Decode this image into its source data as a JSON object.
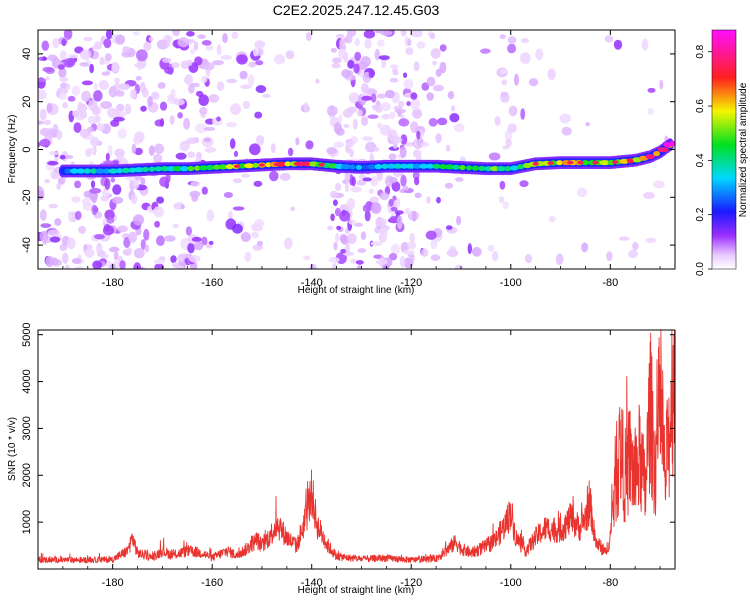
{
  "figure": {
    "title": "C2E2.2025.247.12.45.G03"
  },
  "chart_data": [
    {
      "type": "heatmap",
      "panel": "top",
      "title": "C2E2.2025.247.12.45.G03",
      "xlabel": "Height of straight line (km)",
      "ylabel": "Frequency (Hz)",
      "xlim": [
        -195,
        -67
      ],
      "ylim": [
        -50,
        50
      ],
      "xticks": [
        -180,
        -160,
        -140,
        -120,
        -100,
        -80
      ],
      "xtick_labels": [
        "-180",
        "-160",
        "-140",
        "-120",
        "-100",
        "-80"
      ],
      "yticks": [
        -40,
        -20,
        0,
        20,
        40
      ],
      "ytick_labels": [
        "-40",
        "-20",
        "0",
        "20",
        "40"
      ],
      "colorbar": {
        "label": "Normalized spectral amplitude",
        "range": [
          0,
          0.88
        ],
        "ticks": [
          0.0,
          0.2,
          0.4,
          0.6,
          0.8
        ],
        "tick_labels": [
          "0.0",
          "0.2",
          "0.4",
          "0.6",
          "0.8"
        ],
        "colormap": "rainbow (white-purple-blue-cyan-green-yellow-red-magenta)"
      },
      "ridge": {
        "description": "dominant frequency track",
        "x": [
          -190,
          -185,
          -180,
          -175,
          -170,
          -165,
          -160,
          -155,
          -150,
          -145,
          -140,
          -135,
          -130,
          -125,
          -120,
          -115,
          -110,
          -105,
          -100,
          -95,
          -90,
          -85,
          -80,
          -75,
          -72,
          -70,
          -68
        ],
        "y": [
          -9,
          -9,
          -9,
          -8.5,
          -8,
          -8,
          -7.5,
          -7,
          -6.5,
          -6,
          -6,
          -7,
          -7.5,
          -7,
          -7,
          -7,
          -7.5,
          -8,
          -8,
          -6,
          -5.5,
          -5.5,
          -5.5,
          -4.5,
          -3,
          -1,
          2
        ],
        "amplitude": [
          0.35,
          0.35,
          0.38,
          0.4,
          0.42,
          0.45,
          0.5,
          0.55,
          0.65,
          0.7,
          0.72,
          0.4,
          0.3,
          0.35,
          0.38,
          0.4,
          0.48,
          0.5,
          0.45,
          0.55,
          0.6,
          0.62,
          0.6,
          0.7,
          0.75,
          0.78,
          0.85
        ]
      }
    },
    {
      "type": "line",
      "panel": "bottom",
      "xlabel": "Height of straight line (km)",
      "ylabel": "SNR (10 * v/v)",
      "xlim": [
        -195,
        -67
      ],
      "ylim": [
        0,
        5100
      ],
      "xticks": [
        -180,
        -160,
        -140,
        -120,
        -100,
        -80
      ],
      "xtick_labels": [
        "-180",
        "-160",
        "-140",
        "-120",
        "-100",
        "-80"
      ],
      "yticks": [
        1000,
        2000,
        3000,
        4000,
        5000
      ],
      "ytick_labels": [
        "1000",
        "2000",
        "3000",
        "4000",
        "5000"
      ],
      "color": "#e8332e",
      "series": [
        {
          "name": "SNR",
          "x": [
            -195,
            -190,
            -185,
            -180,
            -177,
            -176,
            -175,
            -172,
            -170,
            -168,
            -165,
            -162,
            -160,
            -157,
            -155,
            -153,
            -151,
            -150,
            -148,
            -147,
            -145,
            -143,
            -141,
            -140,
            -139,
            -137,
            -135,
            -133,
            -130,
            -125,
            -120,
            -115,
            -113,
            -111,
            -110,
            -108,
            -105,
            -103,
            -101,
            -100,
            -99,
            -97,
            -95,
            -93,
            -90,
            -88,
            -86,
            -84,
            -83,
            -82,
            -81,
            -80,
            -79,
            -78,
            -77,
            -76,
            -75,
            -74,
            -73,
            -72,
            -71,
            -70,
            -69,
            -68,
            -67
          ],
          "y": [
            200,
            200,
            200,
            210,
            400,
            700,
            350,
            250,
            400,
            300,
            400,
            350,
            250,
            400,
            300,
            450,
            650,
            500,
            800,
            1000,
            700,
            500,
            1200,
            1700,
            1000,
            550,
            280,
            250,
            220,
            240,
            200,
            230,
            400,
            600,
            450,
            350,
            500,
            650,
            1000,
            1300,
            700,
            400,
            700,
            900,
            850,
            1100,
            900,
            1400,
            600,
            500,
            350,
            700,
            2000,
            2700,
            2100,
            2500,
            2000,
            2600,
            1700,
            3700,
            2300,
            3800,
            2000,
            3300,
            5000
          ]
        }
      ]
    }
  ]
}
